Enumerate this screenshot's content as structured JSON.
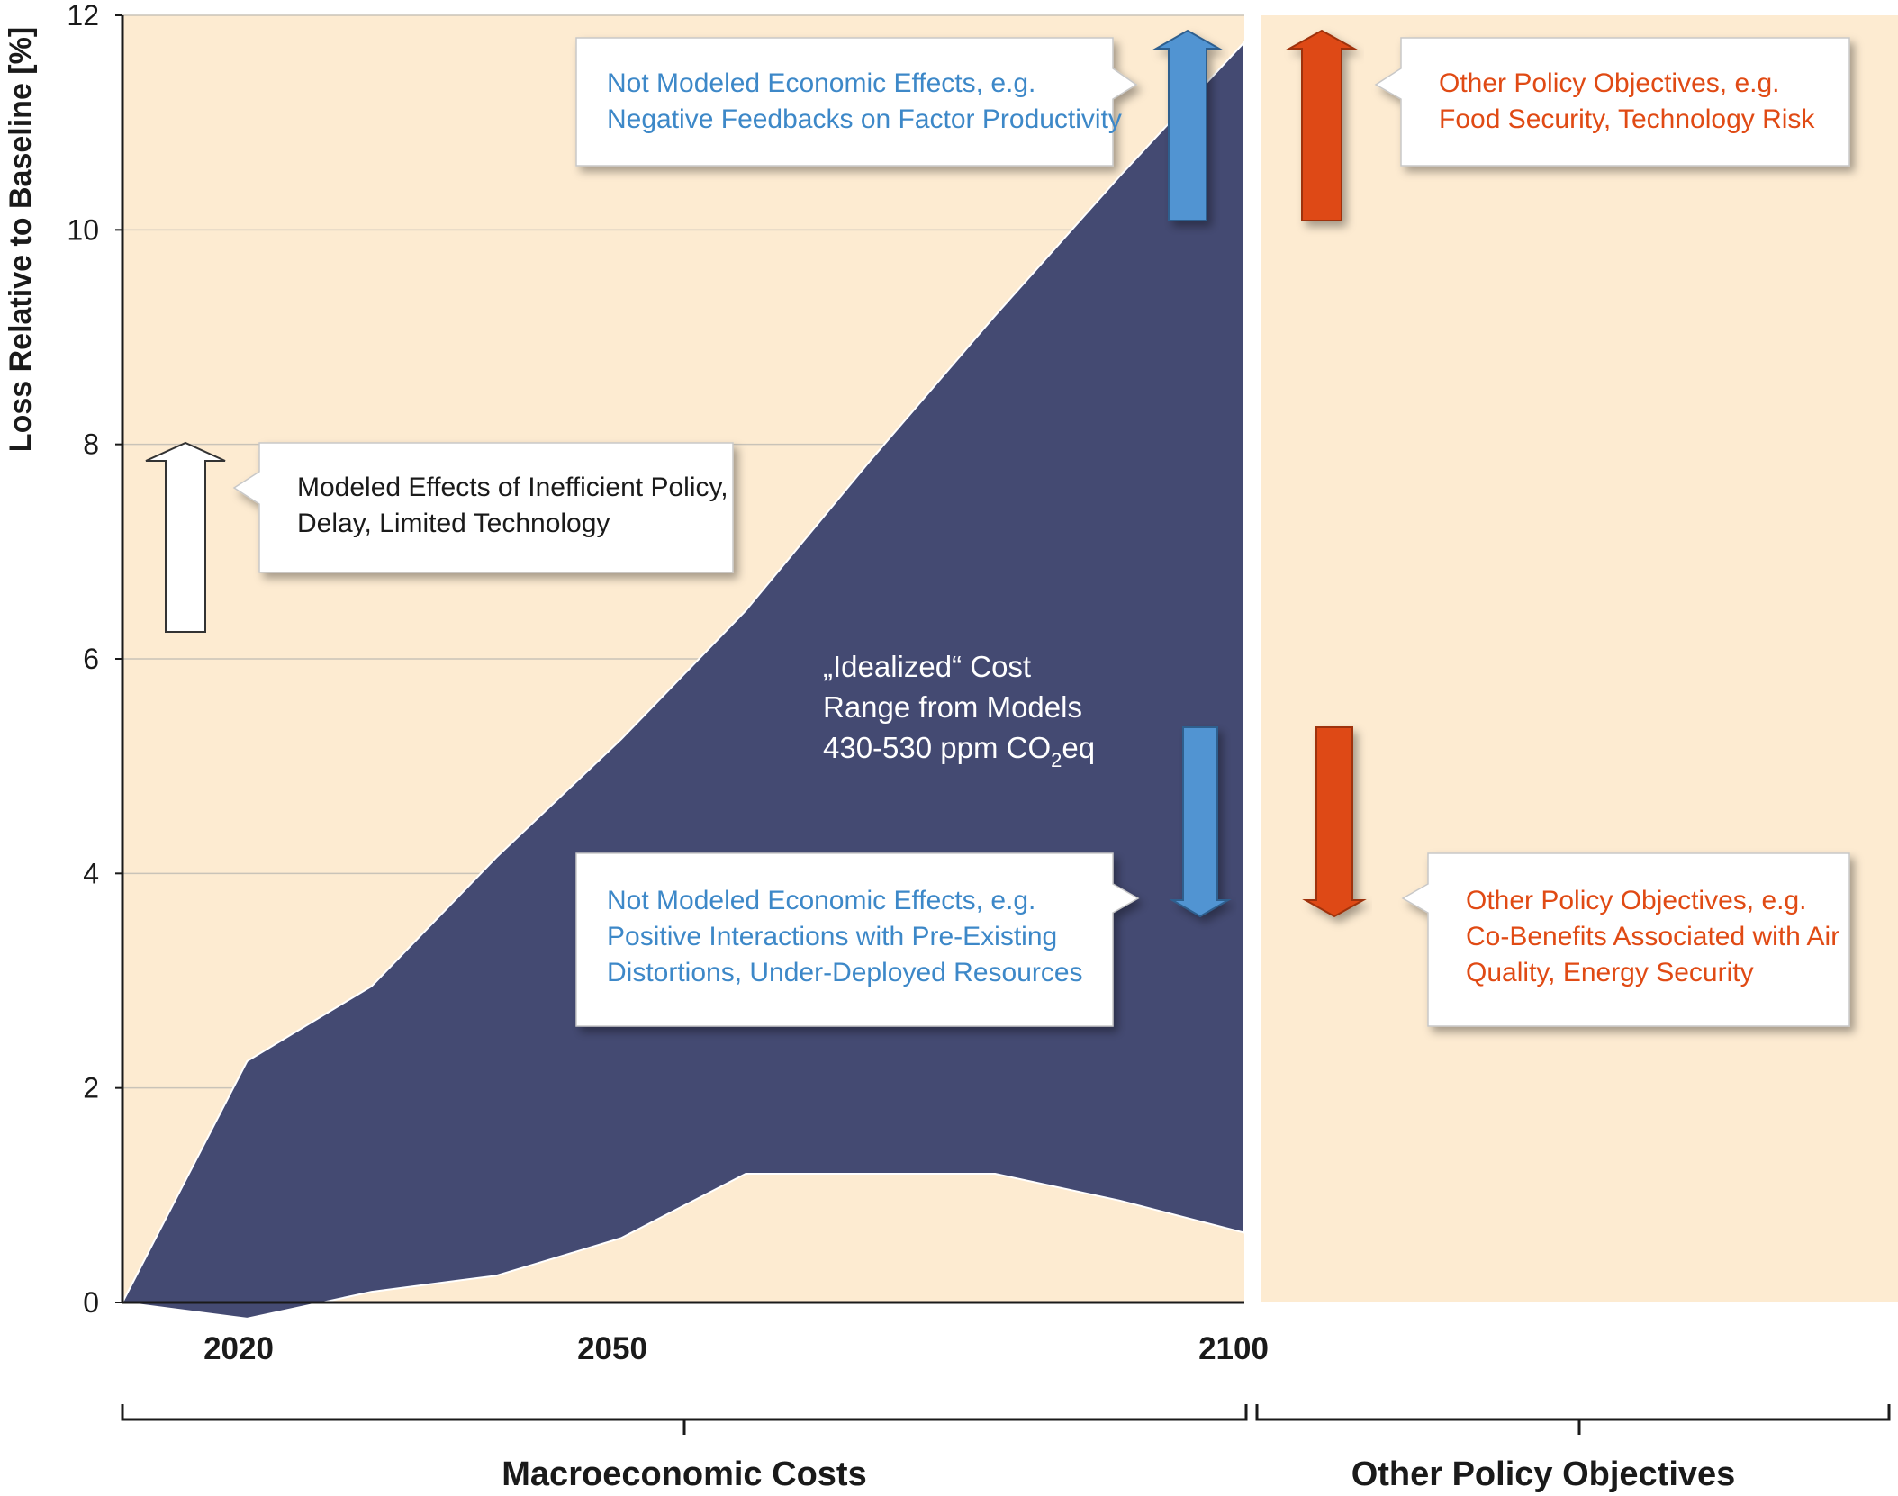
{
  "chart_data": {
    "type": "area",
    "ylabel": "Loss Relative to Baseline [%]",
    "ylim": [
      0,
      12
    ],
    "yticks": [
      "0",
      "2",
      "4",
      "6",
      "8",
      "10",
      "12"
    ],
    "xticks": [
      "2020",
      "2050",
      "2100"
    ],
    "grid": true,
    "series": [
      {
        "x": [
          2010,
          2020,
          2030,
          2040,
          2050,
          2060,
          2070,
          2080,
          2090,
          2100
        ],
        "upper": [
          0.0,
          2.25,
          2.95,
          4.15,
          5.25,
          6.45,
          7.85,
          9.2,
          10.5,
          11.75
        ],
        "lower": [
          0.0,
          -0.15,
          0.1,
          0.25,
          0.6,
          1.2,
          1.2,
          1.2,
          0.95,
          0.65
        ]
      }
    ],
    "range_label": {
      "line1": "„Idealized“ Cost",
      "line2": "Range from Models",
      "line3_pre": "430-530 ppm CO",
      "line3_sub": "2",
      "line3_post": "eq"
    },
    "annotations": [
      {
        "id": "inefficient",
        "color": "#1a1a1a",
        "lines": [
          "Modeled Effects of Inefficient Policy,",
          "Delay, Limited Technology"
        ]
      },
      {
        "id": "neg-feedback",
        "color": "#3d88c8",
        "lines": [
          "Not Modeled Economic Effects, e.g.",
          "Negative Feedbacks on Factor Productivity"
        ]
      },
      {
        "id": "pos-interactions",
        "color": "#3d88c8",
        "lines": [
          "Not Modeled Economic Effects, e.g.",
          "Positive Interactions with Pre-Existing",
          "Distortions, Under-Deployed Resources"
        ]
      },
      {
        "id": "other-up",
        "color": "#e04a14",
        "lines": [
          "Other Policy Objectives, e.g.",
          "Food Security, Technology Risk"
        ]
      },
      {
        "id": "other-down",
        "color": "#e04a14",
        "lines": [
          "Other Policy Objectives, e.g.",
          "Co-Benefits Associated with Air",
          "Quality, Energy Security"
        ]
      }
    ],
    "sections": [
      "Macroeconomic Costs",
      "Other Policy Objectives"
    ]
  },
  "colors": {
    "background": "#fdebd1",
    "area_fill": "#444a72",
    "arrow_white": "#ffffff",
    "arrow_blue": "#5194d2",
    "arrow_red": "#de4a12"
  }
}
